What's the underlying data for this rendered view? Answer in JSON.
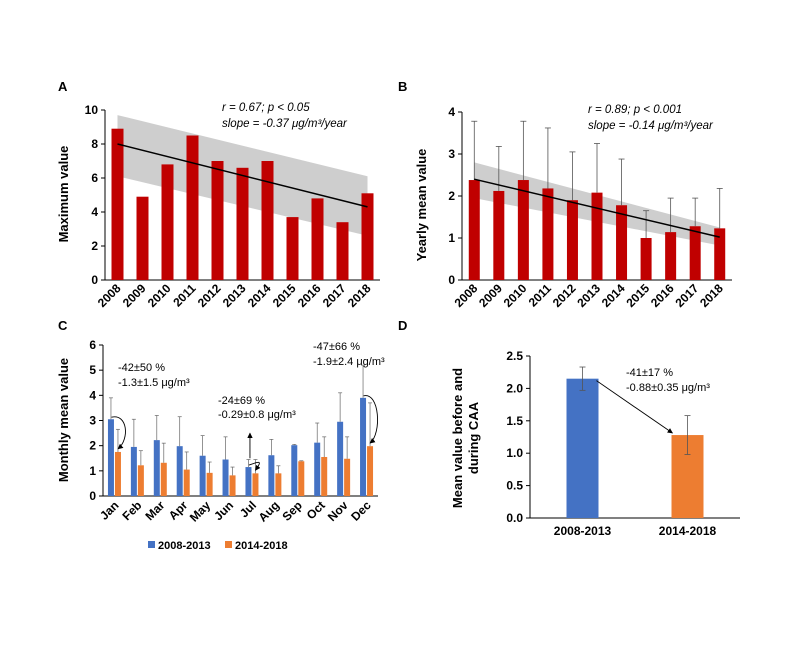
{
  "chart_data": [
    {
      "panel": "A",
      "type": "bar",
      "ylabel": "Maximum value",
      "categories": [
        "2008",
        "2009",
        "2010",
        "2011",
        "2012",
        "2013",
        "2014",
        "2015",
        "2016",
        "2017",
        "2018"
      ],
      "values": [
        8.9,
        4.9,
        6.8,
        8.5,
        7.0,
        6.6,
        7.0,
        3.7,
        4.8,
        3.4,
        5.1
      ],
      "ylim": [
        0,
        10
      ],
      "yticks": [
        "0",
        "2",
        "4",
        "6",
        "8",
        "10"
      ],
      "bar_color": "#c00000",
      "trend": {
        "start": 8.0,
        "end": 4.3
      },
      "band": {
        "upper_start": 9.7,
        "upper_end": 6.1,
        "lower_start": 6.1,
        "lower_end": 2.6
      },
      "annotation_1": "r = 0.67; p < 0.05",
      "annotation_2": "slope = -0.37 μg/m³/year"
    },
    {
      "panel": "B",
      "type": "bar",
      "ylabel": "Yearly mean value",
      "categories": [
        "2008",
        "2009",
        "2010",
        "2011",
        "2012",
        "2013",
        "2014",
        "2015",
        "2016",
        "2017",
        "2018"
      ],
      "values": [
        2.38,
        2.12,
        2.38,
        2.18,
        1.9,
        2.08,
        1.78,
        1.0,
        1.14,
        1.28,
        1.23
      ],
      "error_upper": [
        3.78,
        3.18,
        3.78,
        3.62,
        3.05,
        3.25,
        2.88,
        1.65,
        1.95,
        1.95,
        2.18
      ],
      "ylim": [
        0,
        4
      ],
      "yticks": [
        "0",
        "1",
        "2",
        "3",
        "4"
      ],
      "bar_color": "#c00000",
      "trend": {
        "start": 2.4,
        "end": 1.02
      },
      "band": {
        "upper_start": 2.8,
        "upper_end": 1.25,
        "lower_start": 1.95,
        "lower_end": 0.82
      },
      "annotation_1": "r = 0.89; p < 0.001",
      "annotation_2": "slope = -0.14 μg/m³/year"
    },
    {
      "panel": "C",
      "type": "bar",
      "ylabel": "Monthly mean value",
      "categories": [
        "Jan",
        "Feb",
        "Mar",
        "Apr",
        "May",
        "Jun",
        "Jul",
        "Aug",
        "Sep",
        "Oct",
        "Nov",
        "Dec"
      ],
      "series": [
        {
          "name": "2008-2013",
          "color": "#4472c4",
          "values": [
            3.05,
            1.95,
            2.22,
            1.98,
            1.6,
            1.45,
            1.15,
            1.62,
            2.02,
            2.12,
            2.95,
            3.9
          ],
          "error_upper": [
            3.9,
            3.05,
            3.2,
            3.15,
            2.4,
            2.35,
            1.45,
            2.25,
            2.05,
            2.9,
            4.1,
            5.2
          ]
        },
        {
          "name": "2014-2018",
          "color": "#ed7d31",
          "values": [
            1.75,
            1.22,
            1.32,
            1.05,
            0.92,
            0.82,
            0.9,
            0.9,
            1.38,
            1.55,
            1.48,
            1.98
          ],
          "error_upper": [
            2.65,
            1.8,
            2.1,
            1.75,
            1.35,
            1.15,
            1.45,
            1.2,
            1.4,
            2.35,
            2.35,
            3.7
          ]
        }
      ],
      "ylim": [
        0,
        6
      ],
      "yticks": [
        "0",
        "1",
        "2",
        "3",
        "4",
        "5",
        "6"
      ],
      "annotations": [
        {
          "line1": "-42±50 %",
          "line2": "-1.3±1.5 μg/m³"
        },
        {
          "line1": "-24±69 %",
          "line2": "-0.29±0.8 μg/m³"
        },
        {
          "line1": "-47±66 %",
          "line2": "-1.9±2.4 μg/m³"
        }
      ]
    },
    {
      "panel": "D",
      "type": "bar",
      "ylabel_line1": "Mean value before and",
      "ylabel_line2": "during CAA",
      "categories": [
        "2008-2013",
        "2014-2018"
      ],
      "values": [
        2.15,
        1.28
      ],
      "error": [
        0.18,
        0.3
      ],
      "colors": [
        "#4472c4",
        "#ed7d31"
      ],
      "ylim": [
        0,
        2.5
      ],
      "yticks": [
        "0.0",
        "0.5",
        "1.0",
        "1.5",
        "2.0",
        "2.5"
      ],
      "annotation_1": "-41±17 %",
      "annotation_2": "-0.88±0.35 μg/m³"
    }
  ]
}
